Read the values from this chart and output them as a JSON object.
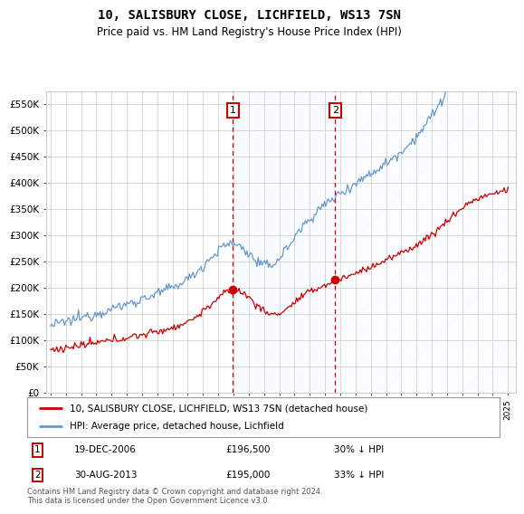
{
  "title": "10, SALISBURY CLOSE, LICHFIELD, WS13 7SN",
  "subtitle": "Price paid vs. HM Land Registry's House Price Index (HPI)",
  "legend_line1": "10, SALISBURY CLOSE, LICHFIELD, WS13 7SN (detached house)",
  "legend_line2": "HPI: Average price, detached house, Lichfield",
  "annotation1_label": "1",
  "annotation1_date": "19-DEC-2006",
  "annotation1_price": "£196,500",
  "annotation1_pct": "30% ↓ HPI",
  "annotation1_year": 2006.96,
  "annotation2_label": "2",
  "annotation2_date": "30-AUG-2013",
  "annotation2_price": "£195,000",
  "annotation2_pct": "33% ↓ HPI",
  "annotation2_year": 2013.66,
  "red_color": "#cc0000",
  "blue_color": "#6699cc",
  "background_color": "#ffffff",
  "grid_color": "#cccccc",
  "vline_color": "#dd0000",
  "shade_color": "#ddeeff",
  "footer": "Contains HM Land Registry data © Crown copyright and database right 2024.\nThis data is licensed under the Open Government Licence v3.0.",
  "ylim": [
    0,
    575000
  ],
  "yticks": [
    0,
    50000,
    100000,
    150000,
    200000,
    250000,
    300000,
    350000,
    400000,
    450000,
    500000,
    550000
  ],
  "xlim_start": 1994.7,
  "xlim_end": 2025.5
}
